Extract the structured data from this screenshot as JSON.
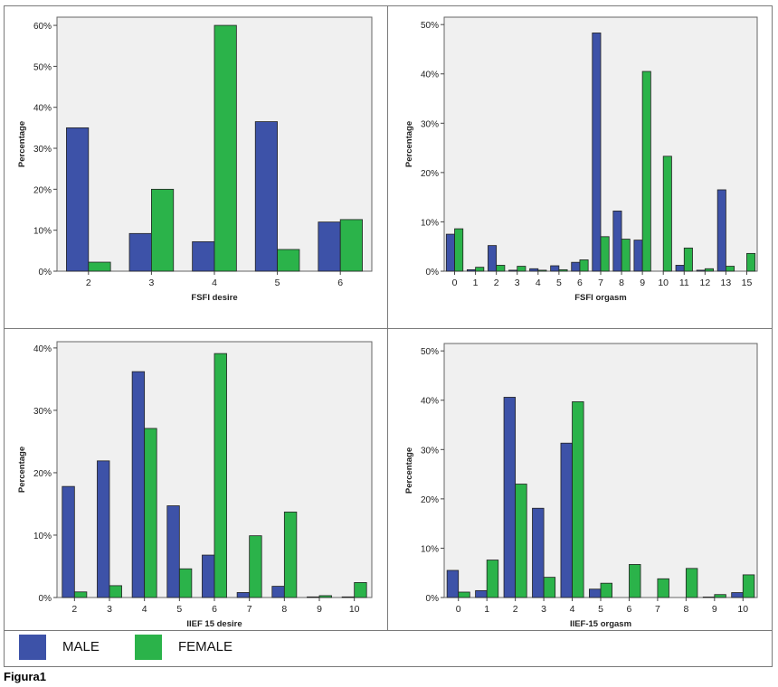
{
  "colors": {
    "male": "#3d52a8",
    "female": "#2bb34a",
    "plot_bg": "#f0f0f0",
    "axis": "#444444"
  },
  "legend": {
    "male_label": "MALE",
    "female_label": "FEMALE"
  },
  "caption": "Figura1",
  "chart_data": [
    {
      "type": "bar",
      "title": "",
      "xlabel": "FSFI desire",
      "ylabel": "Percentage",
      "ylim": [
        0,
        62
      ],
      "yticks": [
        0,
        10,
        20,
        30,
        40,
        50,
        60
      ],
      "ytick_labels": [
        "0%",
        "10%",
        "20%",
        "30%",
        "40%",
        "50%",
        "60%"
      ],
      "categories": [
        "2",
        "3",
        "4",
        "5",
        "6"
      ],
      "series": [
        {
          "name": "MALE",
          "values": [
            35,
            9.2,
            7.2,
            36.5,
            12
          ]
        },
        {
          "name": "FEMALE",
          "values": [
            2.2,
            20,
            60,
            5.3,
            12.6
          ]
        }
      ]
    },
    {
      "type": "bar",
      "title": "",
      "xlabel": "FSFI orgasm",
      "ylabel": "Percentage",
      "ylim": [
        0,
        51.5
      ],
      "yticks": [
        0,
        10,
        20,
        30,
        40,
        50
      ],
      "ytick_labels": [
        "0%",
        "10%",
        "20%",
        "30%",
        "40%",
        "50%"
      ],
      "categories": [
        "0",
        "1",
        "2",
        "3",
        "4",
        "5",
        "6",
        "7",
        "8",
        "9",
        "10",
        "11",
        "12",
        "13",
        "15"
      ],
      "series": [
        {
          "name": "MALE",
          "values": [
            7.5,
            0.3,
            5.2,
            0.2,
            0.5,
            1.1,
            1.8,
            48.3,
            12.2,
            6.3,
            0,
            1.2,
            0.2,
            16.5,
            0
          ]
        },
        {
          "name": "FEMALE",
          "values": [
            8.6,
            0.8,
            1.2,
            1.0,
            0.2,
            0.3,
            2.3,
            7.0,
            6.5,
            40.5,
            23.3,
            4.7,
            0.5,
            1.0,
            3.6
          ]
        }
      ]
    },
    {
      "type": "bar",
      "title": "",
      "xlabel": "IIEF 15 desire",
      "ylabel": "Percentage",
      "ylim": [
        0,
        41
      ],
      "yticks": [
        0,
        10,
        20,
        30,
        40
      ],
      "ytick_labels": [
        "0%",
        "10%",
        "20%",
        "30%",
        "40%"
      ],
      "categories": [
        "2",
        "3",
        "4",
        "5",
        "6",
        "7",
        "8",
        "9",
        "10"
      ],
      "series": [
        {
          "name": "MALE",
          "values": [
            17.8,
            21.9,
            36.2,
            14.7,
            6.8,
            0.8,
            1.8,
            0.1,
            0.1
          ]
        },
        {
          "name": "FEMALE",
          "values": [
            0.9,
            1.9,
            27.1,
            4.6,
            39.1,
            9.9,
            13.7,
            0.3,
            2.4
          ]
        }
      ]
    },
    {
      "type": "bar",
      "title": "",
      "xlabel": "IIEF-15 orgasm",
      "ylabel": "Percentage",
      "ylim": [
        0,
        51.5
      ],
      "yticks": [
        0,
        10,
        20,
        30,
        40,
        50
      ],
      "ytick_labels": [
        "0%",
        "10%",
        "20%",
        "30%",
        "40%",
        "50%"
      ],
      "categories": [
        "0",
        "1",
        "2",
        "3",
        "4",
        "5",
        "6",
        "7",
        "8",
        "9",
        "10"
      ],
      "series": [
        {
          "name": "MALE",
          "values": [
            5.5,
            1.4,
            40.6,
            18.1,
            31.3,
            1.7,
            0,
            0,
            0,
            0.1,
            1.0
          ]
        },
        {
          "name": "FEMALE",
          "values": [
            1.1,
            7.6,
            23.0,
            4.1,
            39.7,
            2.9,
            6.7,
            3.8,
            5.9,
            0.6,
            4.6
          ]
        }
      ]
    }
  ]
}
